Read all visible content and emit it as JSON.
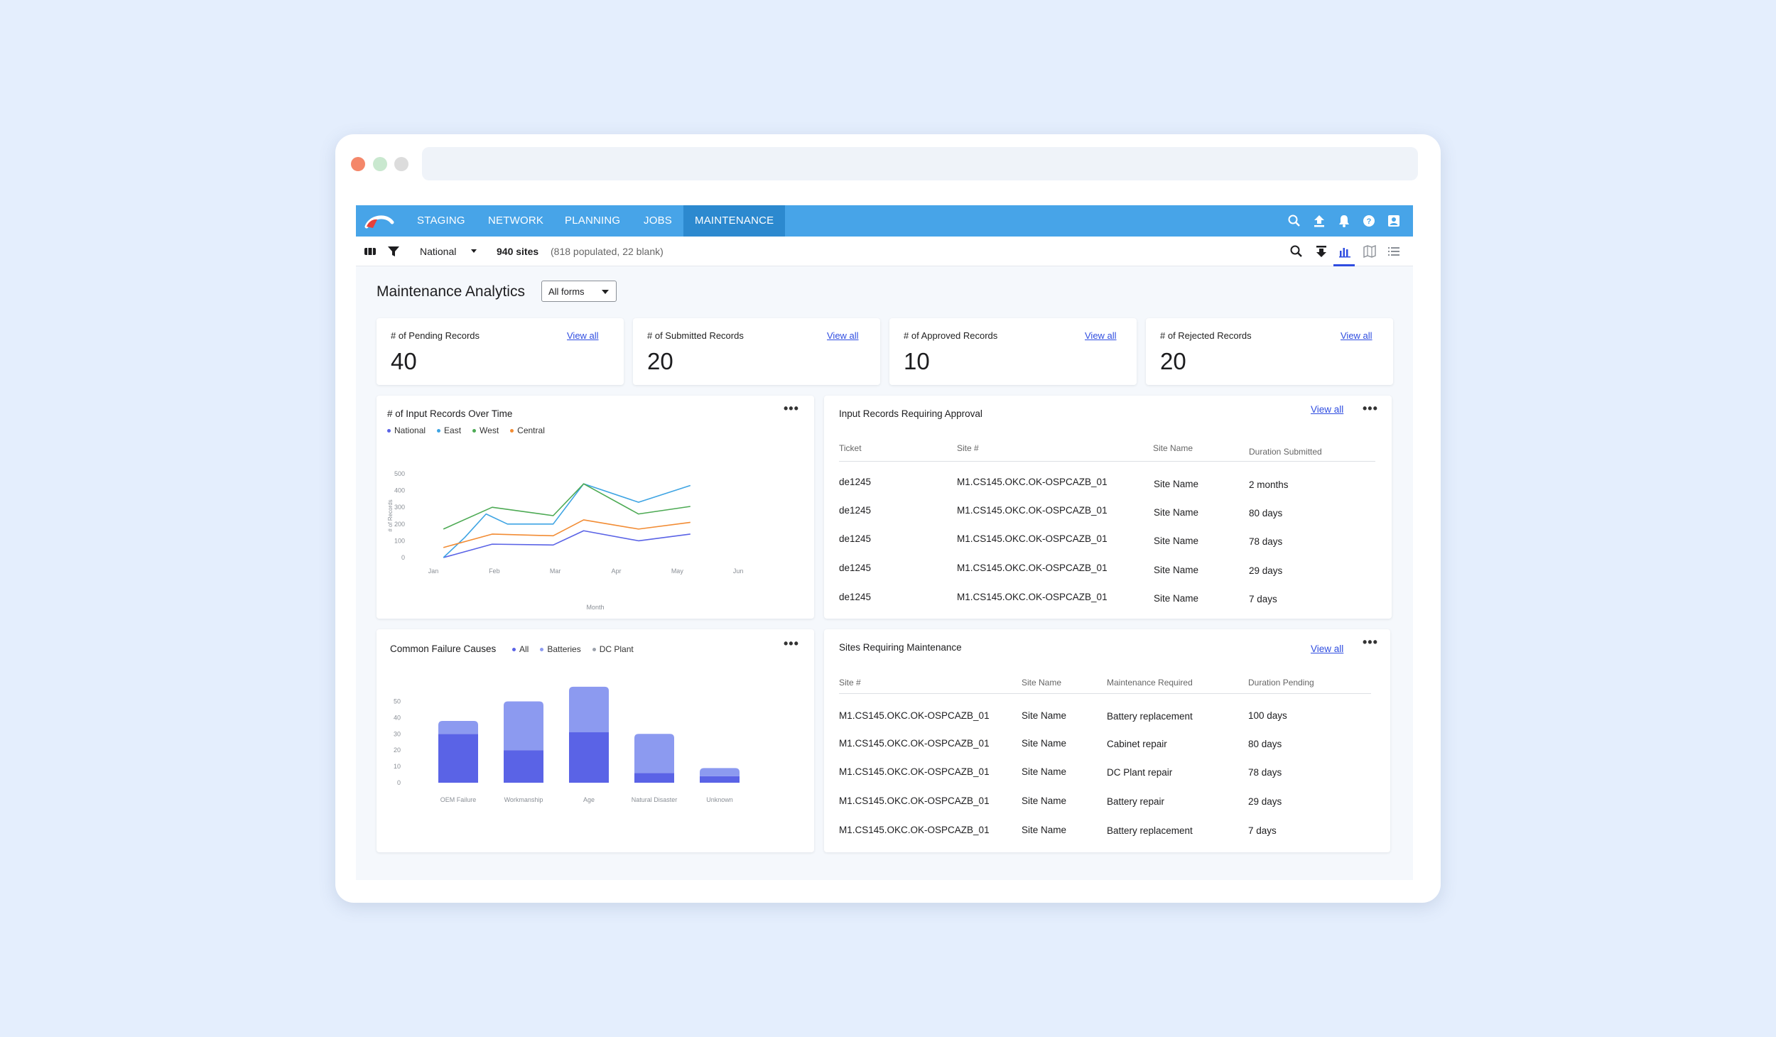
{
  "nav": {
    "tabs": [
      "STAGING",
      "NETWORK",
      "PLANNING",
      "JOBS",
      "MAINTENANCE"
    ],
    "active_tab": "MAINTENANCE",
    "icons": [
      "search-icon",
      "upload-icon",
      "bell-icon",
      "help-icon",
      "profile-icon"
    ]
  },
  "toolbar": {
    "region": "National",
    "sites_count": "940 sites",
    "sites_detail": "(818 populated, 22 blank)",
    "icons": [
      "search-icon",
      "download-icon",
      "bar-chart-icon",
      "map-icon",
      "list-icon"
    ]
  },
  "page": {
    "title": "Maintenance Analytics",
    "forms_filter": "All forms"
  },
  "stats": [
    {
      "label": "# of Pending Records",
      "value": "40",
      "link": "View all"
    },
    {
      "label": "# of Submitted Records",
      "value": "20",
      "link": "View all"
    },
    {
      "label": "# of Approved Records",
      "value": "10",
      "link": "View all"
    },
    {
      "label": "# of Rejected Records",
      "value": "20",
      "link": "View all"
    }
  ],
  "line_card": {
    "title": "# of Input Records Over Time"
  },
  "bar_card": {
    "title": "Common Failure Causes"
  },
  "approval_table": {
    "title": "Input Records Requiring Approval",
    "link": "View all",
    "headers": [
      "Ticket",
      "Site #",
      "Site Name",
      "Duration Submitted"
    ],
    "rows": [
      [
        "de1245",
        "M1.CS145.OKC.OK-OSPCAZB_01",
        "Site Name",
        "2 months"
      ],
      [
        "de1245",
        "M1.CS145.OKC.OK-OSPCAZB_01",
        "Site Name",
        "80 days"
      ],
      [
        "de1245",
        "M1.CS145.OKC.OK-OSPCAZB_01",
        "Site Name",
        "78 days"
      ],
      [
        "de1245",
        "M1.CS145.OKC.OK-OSPCAZB_01",
        "Site Name",
        "29 days"
      ],
      [
        "de1245",
        "M1.CS145.OKC.OK-OSPCAZB_01",
        "Site Name",
        "7 days"
      ]
    ]
  },
  "maintenance_table": {
    "title": "Sites Requiring Maintenance",
    "link": "View all",
    "headers": [
      "Site #",
      "Site Name",
      "Maintenance Required",
      "Duration Pending"
    ],
    "rows": [
      [
        "M1.CS145.OKC.OK-OSPCAZB_01",
        "Site Name",
        "Battery replacement",
        "100 days"
      ],
      [
        "M1.CS145.OKC.OK-OSPCAZB_01",
        "Site Name",
        "Cabinet repair",
        "80 days"
      ],
      [
        "M1.CS145.OKC.OK-OSPCAZB_01",
        "Site Name",
        "DC Plant repair",
        "78 days"
      ],
      [
        "M1.CS145.OKC.OK-OSPCAZB_01",
        "Site Name",
        "Battery repair",
        "29 days"
      ],
      [
        "M1.CS145.OKC.OK-OSPCAZB_01",
        "Site Name",
        "Battery replacement",
        "7 days"
      ]
    ]
  },
  "chart_data": [
    {
      "type": "line",
      "title": "# of Input Records Over Time",
      "xlabel": "Month",
      "ylabel": "# of Records",
      "categories": [
        "Jan",
        "Feb",
        "Mar",
        "Apr",
        "May",
        "Jun"
      ],
      "ylim": [
        0,
        500
      ],
      "yticks": [
        0,
        100,
        200,
        300,
        400,
        500
      ],
      "legend_position": "top-left",
      "series": [
        {
          "name": "National",
          "color": "#5a63e6",
          "points": [
            [
              0.2,
              0
            ],
            [
              1,
              80
            ],
            [
              2,
              75
            ],
            [
              2.5,
              160
            ],
            [
              3.4,
              100
            ],
            [
              4.25,
              140
            ]
          ]
        },
        {
          "name": "East",
          "color": "#3ea4e3",
          "points": [
            [
              0.2,
              0
            ],
            [
              0.55,
              120
            ],
            [
              0.9,
              260
            ],
            [
              1.25,
              200
            ],
            [
              2,
              200
            ],
            [
              2.5,
              440
            ],
            [
              3.4,
              330
            ],
            [
              4.25,
              430
            ]
          ]
        },
        {
          "name": "West",
          "color": "#4daa54",
          "points": [
            [
              0.2,
              170
            ],
            [
              1,
              300
            ],
            [
              2,
              250
            ],
            [
              2.5,
              440
            ],
            [
              3.4,
              260
            ],
            [
              4.25,
              305
            ]
          ]
        },
        {
          "name": "Central",
          "color": "#f28c34",
          "points": [
            [
              0.2,
              60
            ],
            [
              1,
              140
            ],
            [
              2,
              130
            ],
            [
              2.5,
              225
            ],
            [
              3.4,
              170
            ],
            [
              4.25,
              210
            ]
          ]
        }
      ]
    },
    {
      "type": "bar",
      "title": "Common Failure Causes",
      "categories": [
        "OEM Failure",
        "Workmanship",
        "Age",
        "Natural Disaster",
        "Unknown"
      ],
      "ylim": [
        0,
        55
      ],
      "yticks": [
        0,
        10,
        20,
        30,
        40,
        50
      ],
      "stacked": true,
      "legend_position": "top",
      "series": [
        {
          "name": "All",
          "color": "#5a63e6",
          "values": [
            30,
            20,
            31,
            6,
            4
          ]
        },
        {
          "name": "Batteries",
          "color": "#8c9af0",
          "values": [
            8,
            30,
            28,
            24,
            5
          ]
        },
        {
          "name": "DC Plant",
          "color": "#9aa0aa",
          "values": [
            0,
            0,
            0,
            0,
            0
          ]
        }
      ]
    }
  ]
}
